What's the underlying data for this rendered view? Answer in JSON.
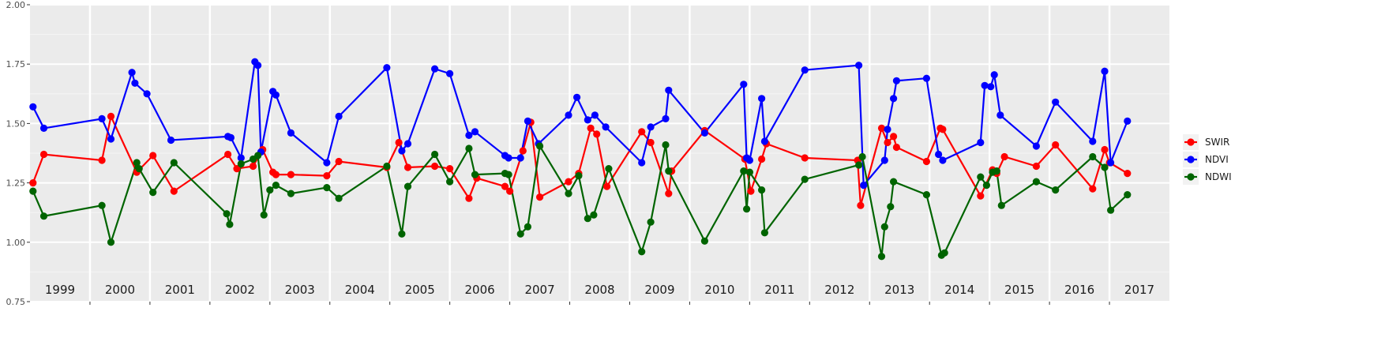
{
  "chart_data": {
    "type": "line",
    "title": "",
    "xlabel": "",
    "ylabel": "",
    "ylim": [
      0.75,
      2.0
    ],
    "y_ticks": [
      "0.75",
      "1.00",
      "1.25",
      "1.50",
      "1.75",
      "2.00"
    ],
    "grid": true,
    "legend_position": "right",
    "year_panels": [
      "1999",
      "2000",
      "2001",
      "2002",
      "2003",
      "2004",
      "2005",
      "2006",
      "2007",
      "2008",
      "2009",
      "2010",
      "2011",
      "2012",
      "2013",
      "2014",
      "2015",
      "2016",
      "2017"
    ],
    "series": [
      {
        "name": "SWIR",
        "color": "#ff0000",
        "values": [
          [
            1999.05,
            1.25
          ],
          [
            1999.23,
            1.37
          ],
          [
            2000.2,
            1.345
          ],
          [
            2000.35,
            1.53
          ],
          [
            2000.78,
            1.295
          ],
          [
            2001.05,
            1.365
          ],
          [
            2001.4,
            1.215
          ],
          [
            2002.3,
            1.37
          ],
          [
            2002.45,
            1.31
          ],
          [
            2002.72,
            1.32
          ],
          [
            2002.88,
            1.39
          ],
          [
            2003.05,
            1.295
          ],
          [
            2003.1,
            1.285
          ],
          [
            2003.35,
            1.285
          ],
          [
            2003.95,
            1.28
          ],
          [
            2004.15,
            1.34
          ],
          [
            2004.95,
            1.315
          ],
          [
            2005.15,
            1.42
          ],
          [
            2005.3,
            1.315
          ],
          [
            2005.75,
            1.32
          ],
          [
            2006.0,
            1.31
          ],
          [
            2006.32,
            1.185
          ],
          [
            2006.45,
            1.27
          ],
          [
            2006.92,
            1.235
          ],
          [
            2007.0,
            1.215
          ],
          [
            2007.22,
            1.385
          ],
          [
            2007.35,
            1.505
          ],
          [
            2007.5,
            1.19
          ],
          [
            2007.98,
            1.255
          ],
          [
            2008.15,
            1.29
          ],
          [
            2008.35,
            1.48
          ],
          [
            2008.45,
            1.455
          ],
          [
            2008.62,
            1.235
          ],
          [
            2009.2,
            1.465
          ],
          [
            2009.35,
            1.42
          ],
          [
            2009.65,
            1.205
          ],
          [
            2009.7,
            1.3
          ],
          [
            2010.25,
            1.47
          ],
          [
            2010.92,
            1.35
          ],
          [
            2011.02,
            1.215
          ],
          [
            2011.2,
            1.35
          ],
          [
            2011.28,
            1.415
          ],
          [
            2011.92,
            1.355
          ],
          [
            2012.8,
            1.345
          ],
          [
            2012.85,
            1.155
          ],
          [
            2013.2,
            1.48
          ],
          [
            2013.3,
            1.42
          ],
          [
            2013.4,
            1.445
          ],
          [
            2013.45,
            1.4
          ],
          [
            2013.95,
            1.34
          ],
          [
            2014.18,
            1.48
          ],
          [
            2014.22,
            1.475
          ],
          [
            2014.85,
            1.195
          ],
          [
            2015.05,
            1.305
          ],
          [
            2015.12,
            1.29
          ],
          [
            2015.25,
            1.36
          ],
          [
            2015.78,
            1.32
          ],
          [
            2016.1,
            1.41
          ],
          [
            2016.72,
            1.225
          ],
          [
            2016.92,
            1.39
          ],
          [
            2017.0,
            1.335
          ],
          [
            2017.3,
            1.29
          ]
        ]
      },
      {
        "name": "NDVI",
        "color": "#0000ff",
        "values": [
          [
            1999.05,
            1.57
          ],
          [
            1999.23,
            1.48
          ],
          [
            2000.2,
            1.52
          ],
          [
            2000.35,
            1.435
          ],
          [
            2000.7,
            1.715
          ],
          [
            2000.75,
            1.67
          ],
          [
            2000.95,
            1.625
          ],
          [
            2001.35,
            1.43
          ],
          [
            2002.3,
            1.445
          ],
          [
            2002.35,
            1.44
          ],
          [
            2002.52,
            1.355
          ],
          [
            2002.75,
            1.76
          ],
          [
            2002.8,
            1.745
          ],
          [
            2002.85,
            1.38
          ],
          [
            2003.05,
            1.635
          ],
          [
            2003.1,
            1.62
          ],
          [
            2003.35,
            1.46
          ],
          [
            2003.95,
            1.335
          ],
          [
            2004.15,
            1.53
          ],
          [
            2004.95,
            1.735
          ],
          [
            2005.2,
            1.385
          ],
          [
            2005.3,
            1.415
          ],
          [
            2005.75,
            1.73
          ],
          [
            2006.0,
            1.71
          ],
          [
            2006.32,
            1.45
          ],
          [
            2006.42,
            1.465
          ],
          [
            2006.92,
            1.365
          ],
          [
            2006.98,
            1.355
          ],
          [
            2007.18,
            1.355
          ],
          [
            2007.3,
            1.51
          ],
          [
            2007.48,
            1.415
          ],
          [
            2007.98,
            1.535
          ],
          [
            2008.12,
            1.61
          ],
          [
            2008.3,
            1.515
          ],
          [
            2008.42,
            1.535
          ],
          [
            2008.6,
            1.485
          ],
          [
            2009.2,
            1.335
          ],
          [
            2009.35,
            1.485
          ],
          [
            2009.6,
            1.52
          ],
          [
            2009.65,
            1.64
          ],
          [
            2010.25,
            1.46
          ],
          [
            2010.9,
            1.665
          ],
          [
            2010.95,
            1.355
          ],
          [
            2011.0,
            1.345
          ],
          [
            2011.2,
            1.605
          ],
          [
            2011.25,
            1.425
          ],
          [
            2011.92,
            1.725
          ],
          [
            2012.82,
            1.745
          ],
          [
            2012.9,
            1.24
          ],
          [
            2013.25,
            1.345
          ],
          [
            2013.3,
            1.475
          ],
          [
            2013.4,
            1.605
          ],
          [
            2013.45,
            1.68
          ],
          [
            2013.95,
            1.69
          ],
          [
            2014.15,
            1.37
          ],
          [
            2014.22,
            1.345
          ],
          [
            2014.85,
            1.42
          ],
          [
            2014.92,
            1.66
          ],
          [
            2015.02,
            1.655
          ],
          [
            2015.08,
            1.705
          ],
          [
            2015.18,
            1.535
          ],
          [
            2015.78,
            1.405
          ],
          [
            2016.1,
            1.59
          ],
          [
            2016.72,
            1.425
          ],
          [
            2016.92,
            1.72
          ],
          [
            2017.02,
            1.335
          ],
          [
            2017.3,
            1.51
          ]
        ]
      },
      {
        "name": "NDWI",
        "color": "#006400",
        "values": [
          [
            1999.05,
            1.215
          ],
          [
            1999.23,
            1.11
          ],
          [
            2000.2,
            1.155
          ],
          [
            2000.35,
            1.0
          ],
          [
            2000.78,
            1.335
          ],
          [
            2000.82,
            1.31
          ],
          [
            2001.05,
            1.21
          ],
          [
            2001.4,
            1.335
          ],
          [
            2002.28,
            1.12
          ],
          [
            2002.33,
            1.075
          ],
          [
            2002.52,
            1.33
          ],
          [
            2002.72,
            1.35
          ],
          [
            2002.8,
            1.365
          ],
          [
            2002.9,
            1.115
          ],
          [
            2003.0,
            1.22
          ],
          [
            2003.1,
            1.24
          ],
          [
            2003.35,
            1.205
          ],
          [
            2003.95,
            1.23
          ],
          [
            2004.15,
            1.185
          ],
          [
            2004.95,
            1.32
          ],
          [
            2005.2,
            1.035
          ],
          [
            2005.3,
            1.235
          ],
          [
            2005.75,
            1.37
          ],
          [
            2006.0,
            1.255
          ],
          [
            2006.32,
            1.395
          ],
          [
            2006.42,
            1.285
          ],
          [
            2006.92,
            1.29
          ],
          [
            2006.98,
            1.285
          ],
          [
            2007.18,
            1.035
          ],
          [
            2007.3,
            1.065
          ],
          [
            2007.5,
            1.405
          ],
          [
            2007.98,
            1.205
          ],
          [
            2008.15,
            1.28
          ],
          [
            2008.3,
            1.1
          ],
          [
            2008.4,
            1.115
          ],
          [
            2008.65,
            1.31
          ],
          [
            2009.2,
            0.96
          ],
          [
            2009.35,
            1.085
          ],
          [
            2009.6,
            1.41
          ],
          [
            2009.65,
            1.3
          ],
          [
            2010.25,
            1.005
          ],
          [
            2010.9,
            1.3
          ],
          [
            2010.95,
            1.14
          ],
          [
            2011.0,
            1.295
          ],
          [
            2011.2,
            1.22
          ],
          [
            2011.25,
            1.04
          ],
          [
            2011.92,
            1.265
          ],
          [
            2012.82,
            1.325
          ],
          [
            2012.88,
            1.36
          ],
          [
            2013.2,
            0.94
          ],
          [
            2013.25,
            1.065
          ],
          [
            2013.35,
            1.15
          ],
          [
            2013.4,
            1.255
          ],
          [
            2013.95,
            1.2
          ],
          [
            2014.2,
            0.945
          ],
          [
            2014.25,
            0.955
          ],
          [
            2014.85,
            1.275
          ],
          [
            2014.95,
            1.24
          ],
          [
            2015.05,
            1.295
          ],
          [
            2015.12,
            1.3
          ],
          [
            2015.2,
            1.155
          ],
          [
            2015.78,
            1.255
          ],
          [
            2016.1,
            1.22
          ],
          [
            2016.72,
            1.36
          ],
          [
            2016.92,
            1.315
          ],
          [
            2017.02,
            1.135
          ],
          [
            2017.3,
            1.2
          ]
        ]
      }
    ]
  }
}
